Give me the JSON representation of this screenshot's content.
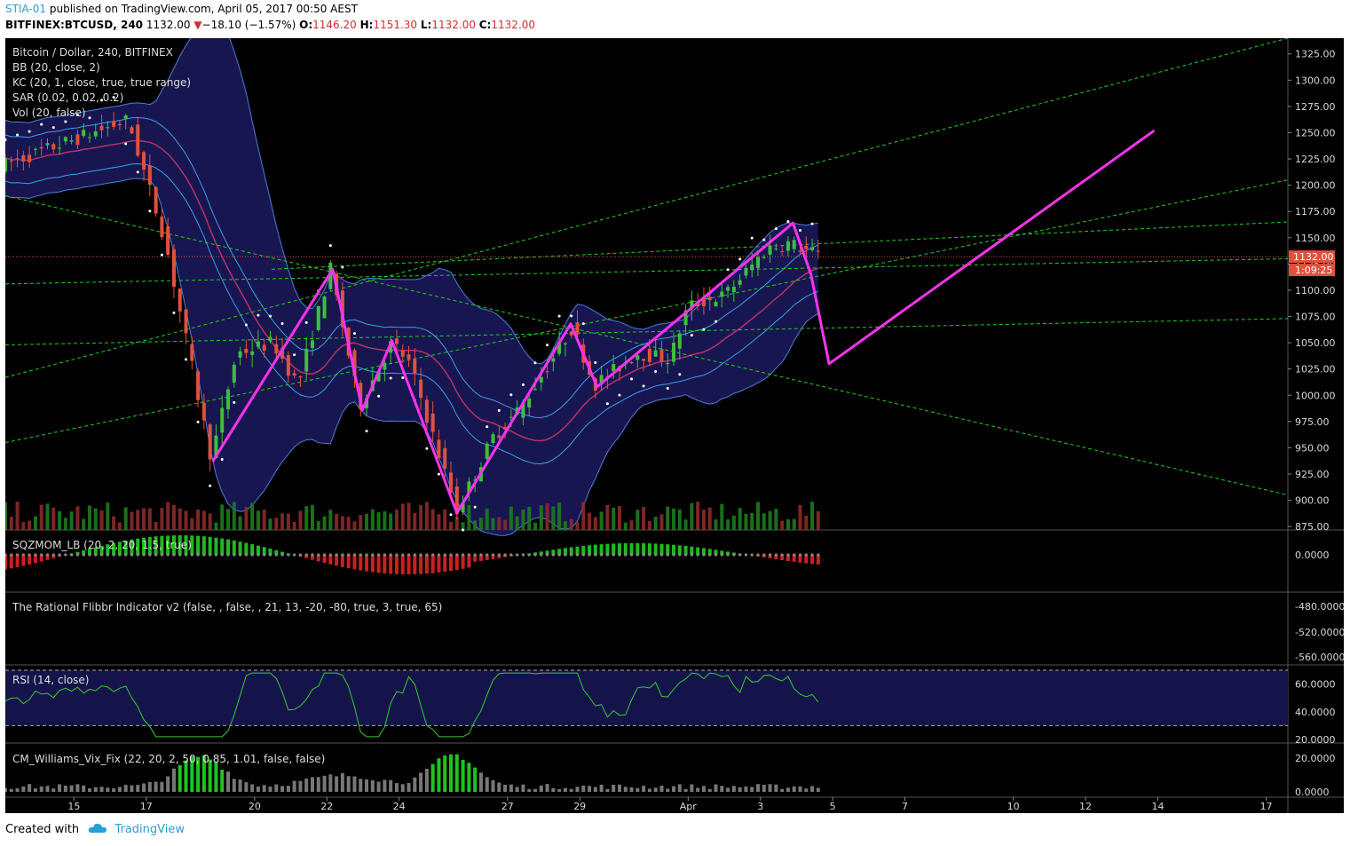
{
  "header": {
    "author": "STIA-01",
    "published_text": "published on TradingView.com, April 05, 2017 00:50 AEST",
    "symbol": "BITFINEX:BTCUSD, 240",
    "last": "1132.00",
    "change": "−18.10 (−1.57%)",
    "open_label": "O:",
    "open": "1146.20",
    "high_label": "H:",
    "high": "1151.30",
    "low_label": "L:",
    "low": "1132.00",
    "close_label": "C:",
    "close": "1132.00"
  },
  "overlays": {
    "title": "Bitcoin / Dollar, 240, BITFINEX",
    "bb": "BB (20, close, 2)",
    "kc": "KC (20, 1, close, true, true range)",
    "sar": "SAR (0.02, 0.02, 0.2)",
    "vol": "Vol (20, false)",
    "sqz": "SQZMOM_LB (20, 2, 20, 1.5, true)",
    "flibbr": "The Rational Flibbr Indicator v2 (false, , false, , 21, 13, -20, -80, true, 3, true, 65)",
    "rsi": "RSI (14, close)",
    "vix": "CM_Williams_Vix_Fix (22, 20, 2, 50, 0.85, 1.01, false, false)"
  },
  "price_labels": {
    "last": "1132.00",
    "countdown": "1:09:25"
  },
  "colors": {
    "up": "#3dbf3d",
    "down": "#e0513e",
    "projection": "#ff33ee",
    "fib": "#22cc22",
    "bb_fill": "#1c1a5e",
    "sar": "#ffffff"
  },
  "chart_data": {
    "type": "candlestick",
    "main": {
      "y_ticks": [
        "1325.00",
        "1300.00",
        "1275.00",
        "1250.00",
        "1225.00",
        "1200.00",
        "1175.00",
        "1150.00",
        "1125.00",
        "1100.00",
        "1075.00",
        "1050.00",
        "1025.00",
        "1000.00",
        "975.00",
        "950.00",
        "925.00",
        "900.00",
        "875.00"
      ],
      "ylim": [
        865,
        1340
      ],
      "x_ticks": [
        {
          "day": 15,
          "label": "15"
        },
        {
          "day": 17,
          "label": "17"
        },
        {
          "day": 20,
          "label": "20"
        },
        {
          "day": 22,
          "label": "22"
        },
        {
          "day": 24,
          "label": "24"
        },
        {
          "day": 27,
          "label": "27"
        },
        {
          "day": 29,
          "label": "29"
        },
        {
          "day": 32,
          "label": "Apr"
        },
        {
          "day": 34,
          "label": "3"
        },
        {
          "day": 36,
          "label": "5"
        },
        {
          "day": 38,
          "label": "7"
        },
        {
          "day": 41,
          "label": "10"
        },
        {
          "day": 43,
          "label": "12"
        },
        {
          "day": 45,
          "label": "14"
        },
        {
          "day": 48,
          "label": "17"
        }
      ],
      "xlim": [
        13.1,
        48.6
      ],
      "key_points": [
        {
          "day": 13.1,
          "price": 1220
        },
        {
          "day": 16.5,
          "price": 1262
        },
        {
          "day": 17.5,
          "price": 1150
        },
        {
          "day": 18.8,
          "price": 940
        },
        {
          "day": 19.5,
          "price": 1040
        },
        {
          "day": 20.5,
          "price": 1050
        },
        {
          "day": 21.2,
          "price": 1010
        },
        {
          "day": 22.1,
          "price": 1120
        },
        {
          "day": 22.9,
          "price": 990
        },
        {
          "day": 23.8,
          "price": 1050
        },
        {
          "day": 24.3,
          "price": 1030
        },
        {
          "day": 25.6,
          "price": 890
        },
        {
          "day": 26.6,
          "price": 960
        },
        {
          "day": 27.4,
          "price": 990
        },
        {
          "day": 28.8,
          "price": 1065
        },
        {
          "day": 29.4,
          "price": 1010
        },
        {
          "day": 30.6,
          "price": 1040
        },
        {
          "day": 31.5,
          "price": 1035
        },
        {
          "day": 32.0,
          "price": 1085
        },
        {
          "day": 33.0,
          "price": 1095
        },
        {
          "day": 34.2,
          "price": 1140
        },
        {
          "day": 34.8,
          "price": 1145
        },
        {
          "day": 35.7,
          "price": 1132
        }
      ],
      "projection": [
        {
          "day": 18.84,
          "price": 937
        },
        {
          "day": 22.16,
          "price": 1120
        },
        {
          "day": 22.98,
          "price": 986
        },
        {
          "day": 23.8,
          "price": 1052
        },
        {
          "day": 25.6,
          "price": 888
        },
        {
          "day": 28.75,
          "price": 1068
        },
        {
          "day": 29.48,
          "price": 1008
        },
        {
          "day": 34.9,
          "price": 1164
        },
        {
          "day": 35.4,
          "price": 1115
        },
        {
          "day": 35.9,
          "price": 1030
        },
        {
          "day": 44.9,
          "price": 1252
        }
      ],
      "last_price": 1132.0
    },
    "squeeze_momentum": {
      "y_ticks": [
        "0.0000"
      ]
    },
    "flibbr": {
      "y_ticks": [
        "-480.0000",
        "-520.0000",
        "-560.0000"
      ]
    },
    "rsi": {
      "y_ticks": [
        "60.0000",
        "40.0000",
        "20.0000"
      ],
      "bands": [
        70,
        30
      ],
      "ylim": [
        20,
        70
      ]
    },
    "vix_fix": {
      "y_ticks": [
        "20.0000",
        "0.0000"
      ]
    }
  },
  "footer": {
    "created_with": "Created with",
    "brand": "TradingView"
  }
}
